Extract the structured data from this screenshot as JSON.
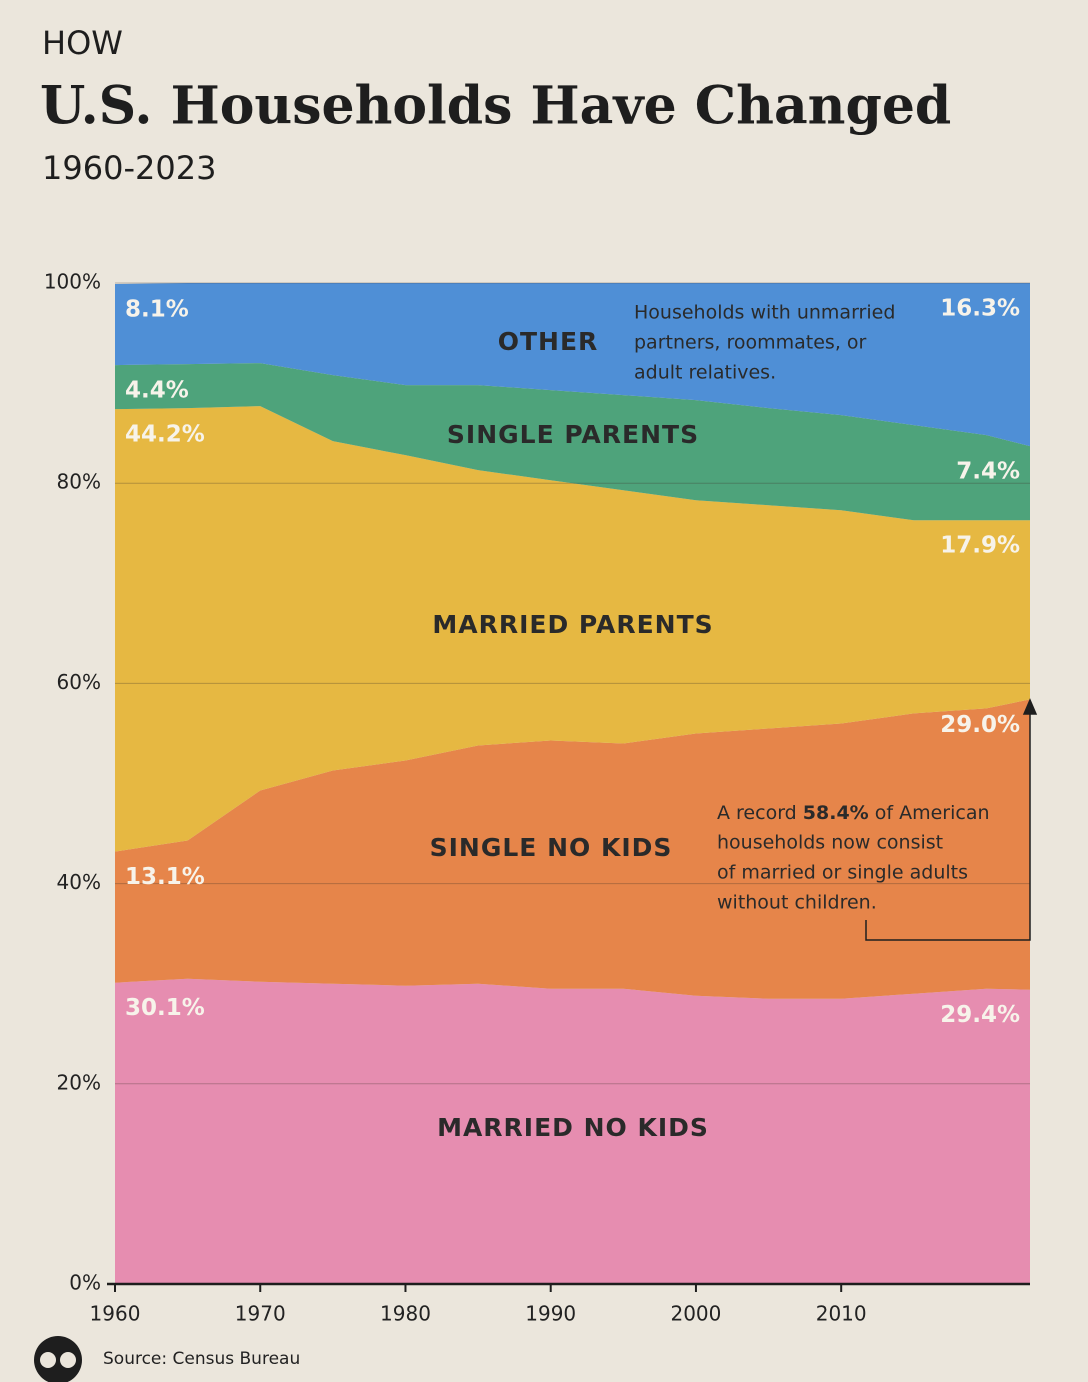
{
  "header": {
    "kicker": "HOW",
    "title": "U.S. Households Have Changed",
    "subtitle": "1960-2023"
  },
  "chart_data": {
    "type": "stacked-area",
    "x": [
      1960,
      1965,
      1970,
      1975,
      1980,
      1985,
      1990,
      1995,
      2000,
      2005,
      2010,
      2015,
      2020,
      2023
    ],
    "series": [
      {
        "name": "MARRIED NO KIDS",
        "color": "#e68db0",
        "values": [
          30.1,
          30.5,
          30.2,
          30.0,
          29.8,
          30.0,
          29.5,
          29.5,
          28.8,
          28.5,
          28.5,
          29.0,
          29.5,
          29.4
        ],
        "value_labels": [
          "30.1%",
          null,
          null,
          null,
          null,
          null,
          null,
          null,
          null,
          null,
          null,
          null,
          null,
          "29.4%"
        ]
      },
      {
        "name": "SINGLE NO KIDS",
        "color": "#e6854a",
        "values": [
          13.1,
          13.8,
          19.1,
          21.3,
          22.5,
          23.8,
          24.8,
          24.5,
          26.2,
          27.0,
          27.5,
          28.0,
          28.0,
          29.0
        ],
        "value_labels": [
          "13.1%",
          null,
          null,
          null,
          null,
          null,
          null,
          null,
          null,
          null,
          null,
          null,
          null,
          "29.0%"
        ]
      },
      {
        "name": "MARRIED PARENTS",
        "color": "#e6b842",
        "values": [
          44.2,
          43.2,
          38.4,
          32.9,
          30.5,
          27.5,
          26.0,
          25.3,
          23.3,
          22.3,
          21.3,
          19.3,
          18.8,
          17.9
        ],
        "value_labels": [
          "44.2%",
          null,
          null,
          null,
          null,
          null,
          null,
          null,
          null,
          null,
          null,
          null,
          null,
          "17.9%"
        ]
      },
      {
        "name": "SINGLE PARENTS",
        "color": "#4ea37b",
        "values": [
          4.4,
          4.4,
          4.3,
          6.6,
          7.0,
          8.5,
          9.0,
          9.5,
          10.0,
          9.7,
          9.5,
          9.5,
          8.5,
          7.4
        ],
        "value_labels": [
          "4.4%",
          null,
          null,
          null,
          null,
          null,
          null,
          null,
          null,
          null,
          null,
          null,
          null,
          "7.4%"
        ]
      },
      {
        "name": "OTHER",
        "color": "#4f8fd6",
        "values": [
          8.1,
          8.1,
          8.0,
          9.2,
          10.2,
          10.2,
          10.7,
          11.2,
          11.7,
          12.5,
          13.2,
          14.2,
          15.2,
          16.3
        ],
        "value_labels": [
          "8.1%",
          null,
          null,
          null,
          null,
          null,
          null,
          null,
          null,
          null,
          null,
          null,
          null,
          "16.3%"
        ]
      }
    ],
    "xlim": [
      1960,
      2023
    ],
    "xticks": [
      1960,
      1970,
      1980,
      1990,
      2000,
      2010
    ],
    "ylim": [
      0,
      100
    ],
    "yticks": [
      {
        "value": 0,
        "label": "0%"
      },
      {
        "value": 20,
        "label": "20%"
      },
      {
        "value": 40,
        "label": "40%"
      },
      {
        "value": 60,
        "label": "60%"
      },
      {
        "value": 80,
        "label": "80%"
      },
      {
        "value": 100,
        "label": "100%"
      }
    ],
    "grid": true,
    "other_note": [
      "Households with unmarried",
      "partners, roommates, or",
      "adult relatives."
    ],
    "record_note": {
      "before": "A record ",
      "highlight": "58.4%",
      "after": " of American",
      "lines": [
        "households now consist",
        "of married or single adults",
        "without children."
      ]
    }
  },
  "source": "Source: Census Bureau"
}
